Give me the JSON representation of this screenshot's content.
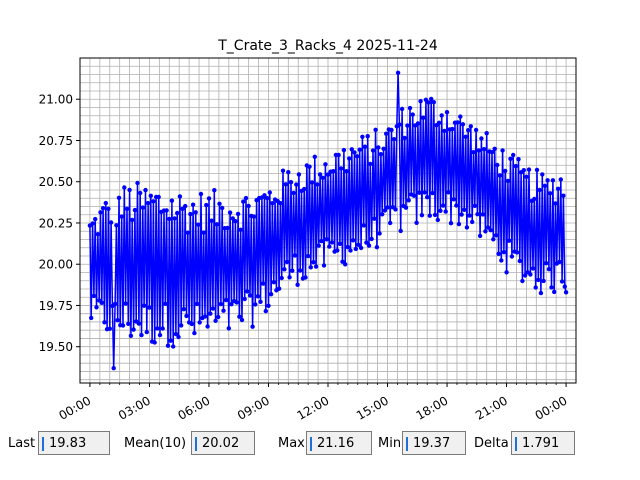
{
  "chart_data": {
    "type": "line",
    "title": "T_Crate_3_Racks_4 2025-11-24",
    "xlabel": "",
    "ylabel": "",
    "x_range_hours": [
      -0.5,
      24.5
    ],
    "ylim": [
      19.28,
      21.25
    ],
    "x_tick_labels": [
      "00:00",
      "03:00",
      "06:00",
      "09:00",
      "12:00",
      "15:00",
      "18:00",
      "21:00",
      "00:00"
    ],
    "y_tick_labels": [
      "19.50",
      "19.75",
      "20.00",
      "20.25",
      "20.50",
      "20.75",
      "21.00"
    ],
    "y_tick_values": [
      19.5,
      19.75,
      20.0,
      20.25,
      20.5,
      20.75,
      21.0
    ],
    "grid": true,
    "series_color": "#0000ff",
    "series": [
      {
        "name": "",
        "hourly_low": [
          19.62,
          19.55,
          19.52,
          19.5,
          19.5,
          19.5,
          19.52,
          19.55,
          19.6,
          19.7,
          19.85,
          19.9,
          19.95,
          20.0,
          20.05,
          20.15,
          20.2,
          20.25,
          20.25,
          20.2,
          20.1,
          19.95,
          19.85,
          19.8,
          19.85
        ],
        "hourly_high": [
          20.3,
          20.45,
          20.5,
          20.5,
          20.48,
          20.45,
          20.45,
          20.45,
          20.45,
          20.5,
          20.6,
          20.65,
          20.7,
          20.75,
          20.8,
          20.85,
          21.0,
          21.05,
          21.0,
          20.9,
          20.8,
          20.7,
          20.6,
          20.55,
          20.6
        ],
        "min": 19.37,
        "min_hour": 1.2,
        "max": 21.16,
        "max_hour": 15.55,
        "last": 19.83
      }
    ]
  },
  "stats": {
    "last_label": "Last",
    "last_value": "19.83",
    "mean_label": "Mean(10)",
    "mean_value": "20.02",
    "max_label": "Max",
    "max_value": "21.16",
    "min_label": "Min",
    "min_value": "19.37",
    "delta_label": "Delta",
    "delta_value": "1.791"
  }
}
